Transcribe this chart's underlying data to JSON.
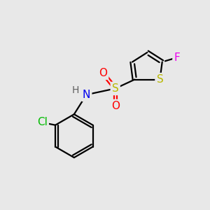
{
  "background_color": "#e8e8e8",
  "bond_color": "#000000",
  "atom_colors": {
    "S_thiophene": "#b8b800",
    "S_sulfonyl": "#b8b800",
    "O": "#ff0000",
    "N": "#0000ee",
    "H": "#606060",
    "Cl": "#00bb00",
    "F": "#ee00ee",
    "C": "#000000"
  },
  "font_size": 10,
  "figsize": [
    3.0,
    3.0
  ],
  "dpi": 100
}
